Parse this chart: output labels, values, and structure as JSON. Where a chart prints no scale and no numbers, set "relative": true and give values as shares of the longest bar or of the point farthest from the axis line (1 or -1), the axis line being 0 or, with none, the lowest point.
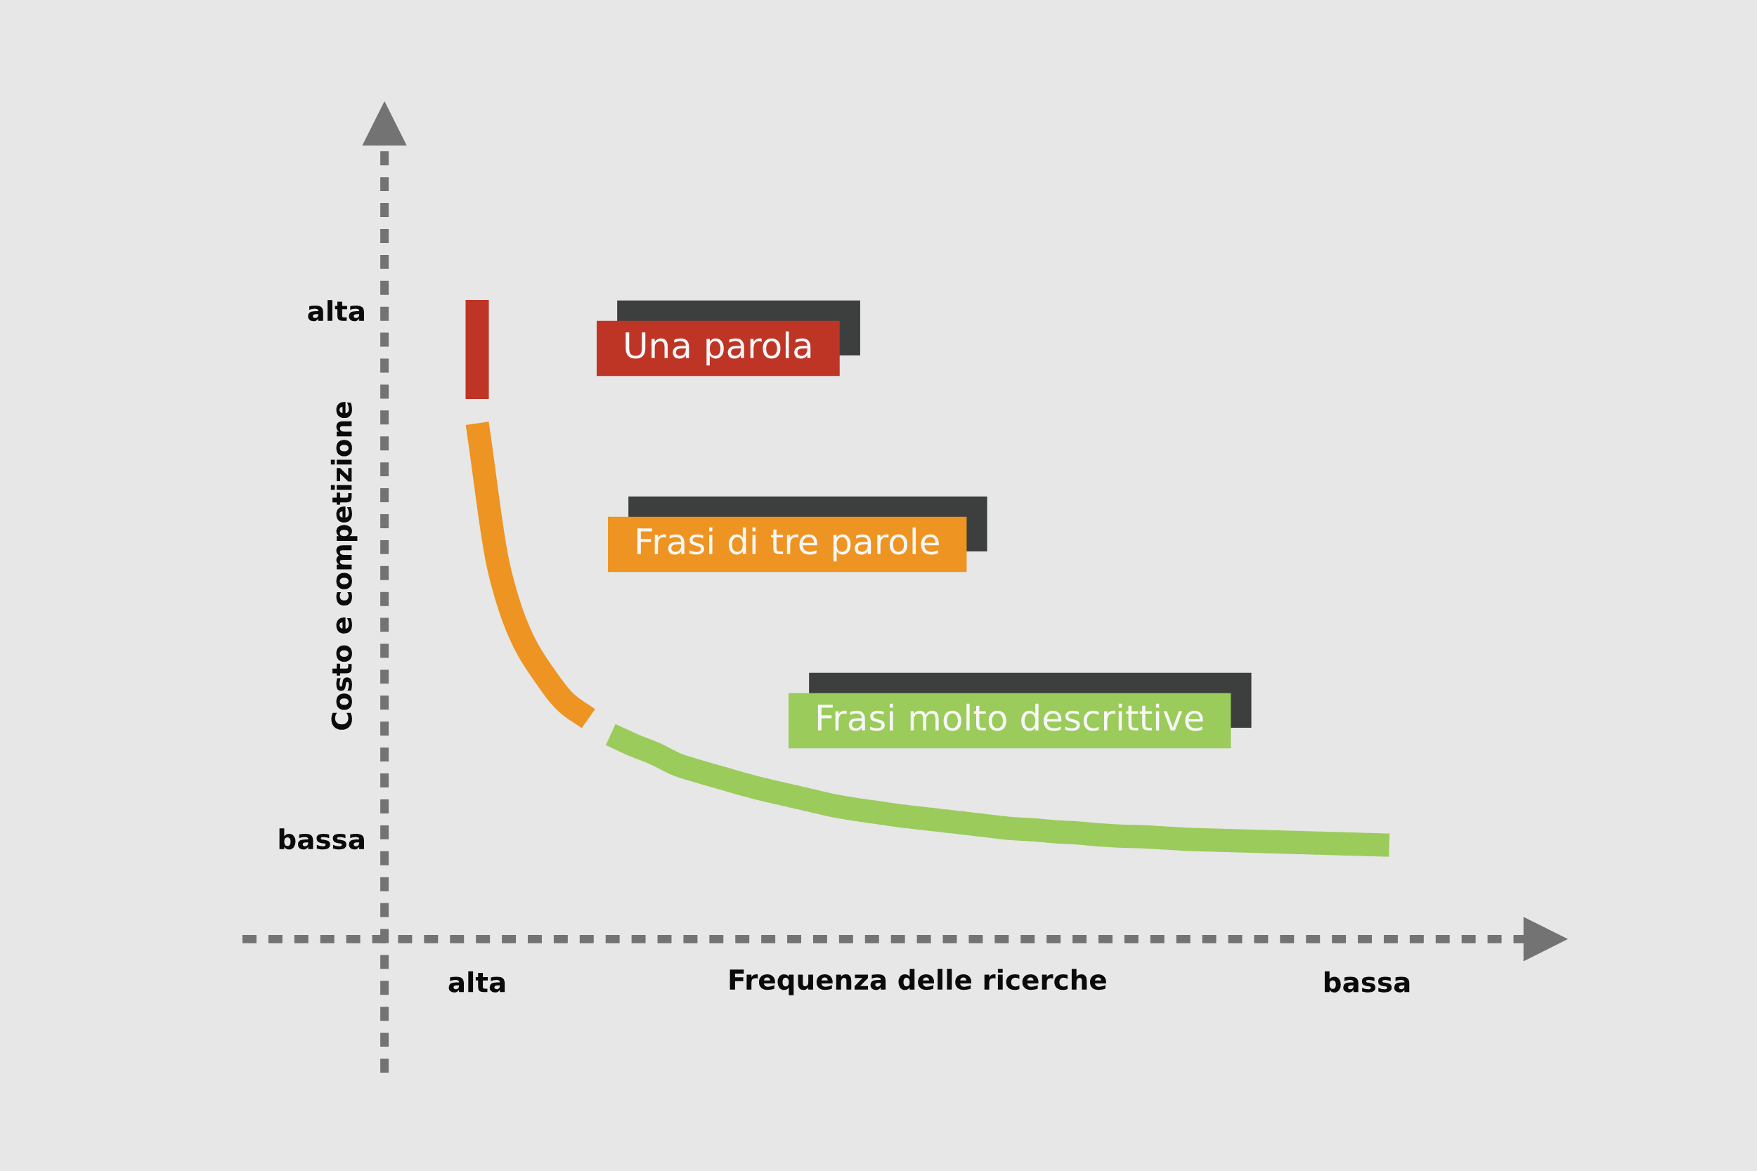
{
  "chart_data": {
    "type": "line",
    "xlabel": "Frequenza delle ricerche",
    "ylabel": "Costo e competizione",
    "relative": true,
    "annotations": [
      "alta",
      "bassa"
    ],
    "categories": [
      "alta",
      null,
      null,
      null,
      null,
      null,
      null,
      null,
      null,
      null,
      null,
      null,
      null,
      null,
      null,
      null,
      null,
      null,
      null,
      null,
      null,
      null,
      null,
      null,
      null,
      null,
      null,
      null,
      null,
      null,
      null,
      null,
      null,
      null,
      null,
      null,
      null,
      null,
      null,
      null,
      "bassa",
      null
    ],
    "series": [
      {
        "name": "Una parola",
        "color": "#be3526",
        "x": [
          "alta",
          "alta"
        ],
        "values": [
          1.0,
          0.845
        ]
      },
      {
        "name": "Frasi di tre parole",
        "color": "#ee9422",
        "values": [
          0.807,
          0.577,
          0.472,
          0.414,
          0.37,
          0.345,
          null,
          null,
          null,
          null,
          null,
          null,
          null,
          null,
          null,
          null,
          null,
          null,
          null,
          null,
          null,
          null,
          null,
          null,
          null,
          null,
          null,
          null,
          null,
          null,
          null,
          null,
          null,
          null,
          null,
          null,
          null,
          null,
          null,
          null,
          null,
          null
        ]
      },
      {
        "name": "Frasi molto descrittive",
        "color": "#9bcb5b",
        "values": [
          null,
          null,
          null,
          null,
          null,
          null,
          0.32,
          0.304,
          0.29,
          0.273,
          0.262,
          0.252,
          0.242,
          0.233,
          0.225,
          0.217,
          0.209,
          0.203,
          0.198,
          0.193,
          0.189,
          0.185,
          0.181,
          0.177,
          0.173,
          0.171,
          0.168,
          0.166,
          0.163,
          0.161,
          0.16,
          0.158,
          0.156,
          0.155,
          0.154,
          0.153,
          0.152,
          0.151,
          0.15,
          0.149,
          0.148,
          0.147
        ]
      }
    ]
  }
}
